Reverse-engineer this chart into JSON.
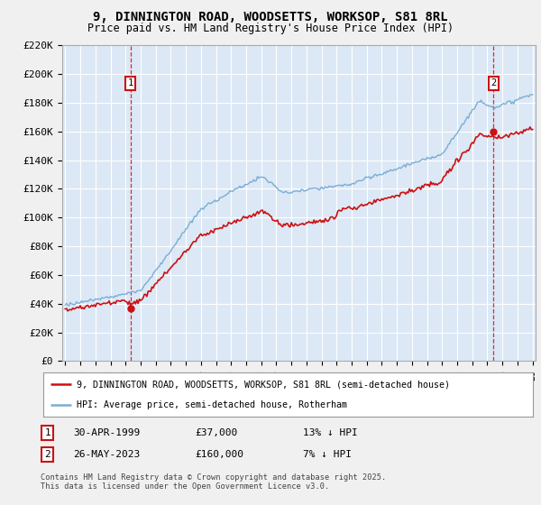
{
  "title": "9, DINNINGTON ROAD, WOODSETTS, WORKSOP, S81 8RL",
  "subtitle": "Price paid vs. HM Land Registry's House Price Index (HPI)",
  "legend_line1": "9, DINNINGTON ROAD, WOODSETTS, WORKSOP, S81 8RL (semi-detached house)",
  "legend_line2": "HPI: Average price, semi-detached house, Rotherham",
  "footnote": "Contains HM Land Registry data © Crown copyright and database right 2025.\nThis data is licensed under the Open Government Licence v3.0.",
  "sale1_label": "1",
  "sale1_date": "30-APR-1999",
  "sale1_price": "£37,000",
  "sale1_hpi": "13% ↓ HPI",
  "sale2_label": "2",
  "sale2_date": "26-MAY-2023",
  "sale2_price": "£160,000",
  "sale2_hpi": "7% ↓ HPI",
  "hpi_color": "#7aadd4",
  "price_color": "#cc1111",
  "marker_color": "#cc1111",
  "sale1_x": 1999.33,
  "sale1_y": 37000,
  "sale2_x": 2023.41,
  "sale2_y": 160000,
  "ylim": [
    0,
    220000
  ],
  "xlim": [
    1994.8,
    2026.2
  ],
  "background_color": "#f0f0f0",
  "plot_bg_color": "#dce8f5",
  "grid_color": "#ffffff",
  "title_fontsize": 10,
  "subtitle_fontsize": 8.5
}
